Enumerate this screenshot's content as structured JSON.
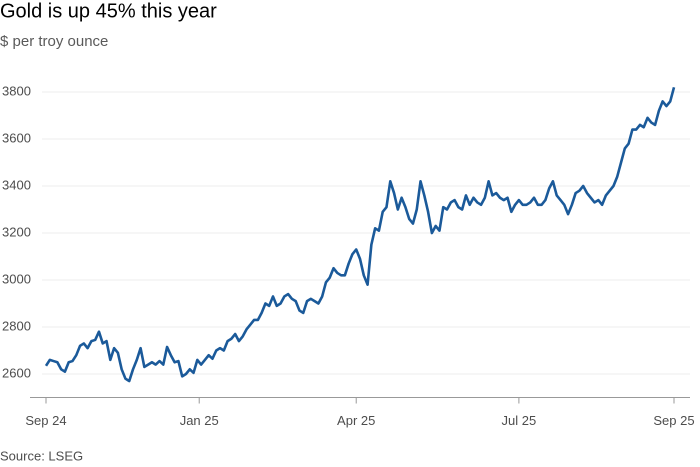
{
  "chart_data": {
    "type": "line",
    "title": "Gold is up 45% this year",
    "subtitle": "$ per troy ounce",
    "source": "Source: LSEG",
    "color": "#1b5a9a",
    "grid": true,
    "ylim": [
      2500,
      3900
    ],
    "yticks": [
      2600,
      2800,
      3000,
      3200,
      3400,
      3600,
      3800
    ],
    "xlim": [
      0,
      166
    ],
    "xticks": [
      {
        "value": 0,
        "label": "Sep 24"
      },
      {
        "value": 40.5,
        "label": "Jan 25"
      },
      {
        "value": 82,
        "label": "Apr 25"
      },
      {
        "value": 125,
        "label": "Jul 25"
      },
      {
        "value": 166,
        "label": "Sep 25"
      }
    ],
    "values": [
      2635,
      2660,
      2655,
      2650,
      2620,
      2610,
      2650,
      2655,
      2680,
      2720,
      2730,
      2710,
      2740,
      2745,
      2780,
      2730,
      2740,
      2660,
      2710,
      2690,
      2620,
      2580,
      2570,
      2620,
      2660,
      2710,
      2630,
      2640,
      2650,
      2640,
      2655,
      2640,
      2715,
      2680,
      2650,
      2655,
      2590,
      2600,
      2620,
      2605,
      2660,
      2640,
      2660,
      2680,
      2665,
      2700,
      2710,
      2700,
      2740,
      2750,
      2770,
      2740,
      2760,
      2790,
      2810,
      2830,
      2830,
      2860,
      2900,
      2890,
      2930,
      2890,
      2900,
      2930,
      2940,
      2920,
      2910,
      2870,
      2860,
      2910,
      2920,
      2910,
      2900,
      2930,
      2990,
      3010,
      3050,
      3030,
      3020,
      3020,
      3070,
      3110,
      3130,
      3090,
      3020,
      2980,
      3150,
      3220,
      3210,
      3290,
      3310,
      3420,
      3370,
      3300,
      3350,
      3310,
      3260,
      3240,
      3300,
      3420,
      3360,
      3290,
      3200,
      3230,
      3210,
      3310,
      3300,
      3330,
      3340,
      3310,
      3300,
      3360,
      3320,
      3350,
      3330,
      3320,
      3350,
      3420,
      3360,
      3370,
      3350,
      3340,
      3350,
      3290,
      3320,
      3340,
      3320,
      3320,
      3330,
      3350,
      3320,
      3320,
      3340,
      3390,
      3420,
      3360,
      3340,
      3320,
      3280,
      3320,
      3370,
      3380,
      3400,
      3370,
      3350,
      3330,
      3340,
      3320,
      3360,
      3380,
      3400,
      3440,
      3500,
      3560,
      3580,
      3640,
      3640,
      3660,
      3650,
      3690,
      3670,
      3660,
      3720,
      3760,
      3740,
      3760,
      3820
    ]
  }
}
